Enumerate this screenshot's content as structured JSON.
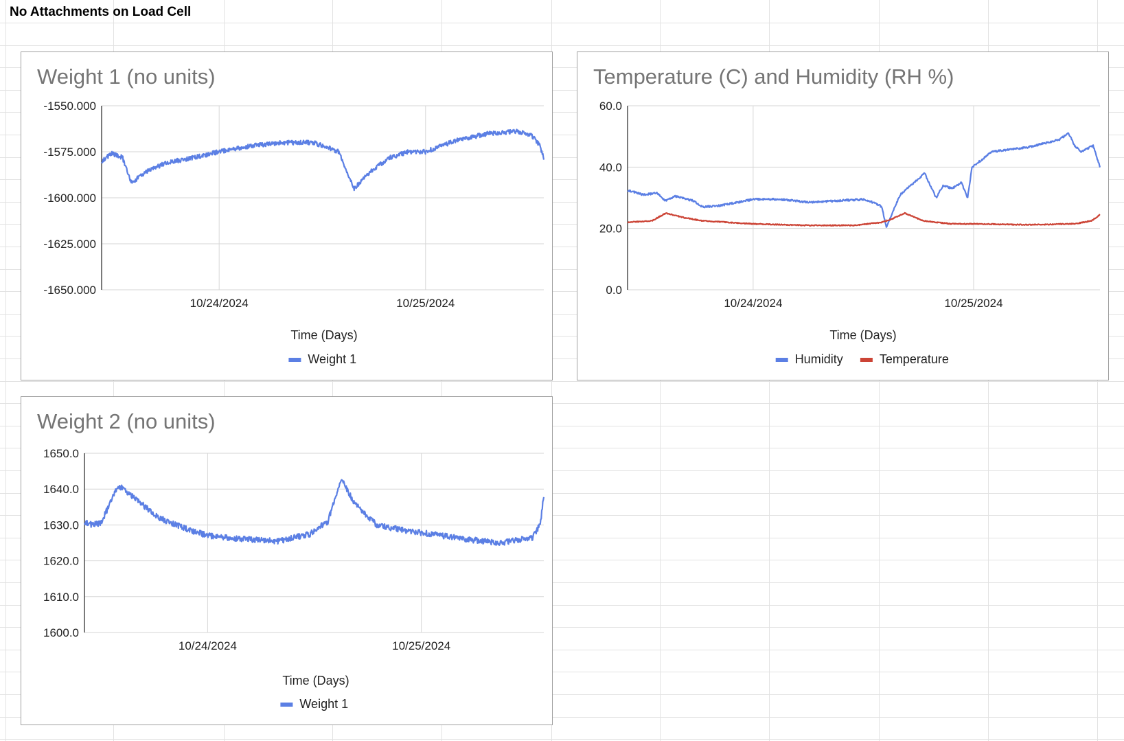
{
  "sheet": {
    "title": "No Attachments on Load Cell"
  },
  "chart_data": [
    {
      "type": "line",
      "title": "Weight 1 (no units)",
      "xlabel": "Time (Days)",
      "ylabel": "",
      "ylim": [
        -1650,
        -1550
      ],
      "yticks": [
        "-1550.000",
        "-1575.000",
        "-1600.000",
        "-1625.000",
        "-1650.000"
      ],
      "yticks_values": [
        -1550,
        -1575,
        -1600,
        -1625,
        -1650
      ],
      "xlim": [
        "10/23/2024 10:20",
        "10/25/2024 13:45"
      ],
      "xticks": [
        "10/24/2024",
        "10/25/2024"
      ],
      "xticks_values": [
        "10/24/2024 00:00",
        "10/25/2024 00:00"
      ],
      "grid": true,
      "legend": "bottom",
      "series": [
        {
          "name": "Weight 1",
          "color": "#5b7fe4",
          "noise": 1.2,
          "x": [
            "10/23/2024 10:20",
            "10/23/2024 11:30",
            "10/23/2024 12:45",
            "10/23/2024 13:45",
            "10/23/2024 15:30",
            "10/23/2024 17:50",
            "10/23/2024 21:15",
            "10/24/2024 00:00",
            "10/24/2024 03:30",
            "10/24/2024 07:30",
            "10/24/2024 11:00",
            "10/24/2024 13:55",
            "10/24/2024 15:40",
            "10/24/2024 17:45",
            "10/24/2024 19:55",
            "10/24/2024 22:05",
            "10/25/2024 00:00",
            "10/25/2024 03:30",
            "10/25/2024 07:20",
            "10/25/2024 10:40",
            "10/25/2024 12:20",
            "10/25/2024 13:20",
            "10/25/2024 13:45"
          ],
          "values": [
            -1580,
            -1576,
            -1578,
            -1592,
            -1586,
            -1581,
            -1578,
            -1575,
            -1572,
            -1570,
            -1570,
            -1575,
            -1595,
            -1585,
            -1578,
            -1575,
            -1575,
            -1569,
            -1565,
            -1564,
            -1566,
            -1572,
            -1579
          ]
        }
      ]
    },
    {
      "type": "line",
      "title": "Temperature (C) and Humidity (RH %)",
      "xlabel": "Time (Days)",
      "ylabel": "",
      "ylim": [
        0,
        60
      ],
      "yticks": [
        "60.0",
        "40.0",
        "20.0",
        "0.0"
      ],
      "yticks_values": [
        60,
        40,
        20,
        0
      ],
      "xlim": [
        "10/23/2024 10:20",
        "10/25/2024 13:45"
      ],
      "xticks": [
        "10/24/2024",
        "10/25/2024"
      ],
      "xticks_values": [
        "10/24/2024 00:00",
        "10/25/2024 00:00"
      ],
      "grid": true,
      "legend": "bottom",
      "series": [
        {
          "name": "Humidity",
          "color": "#5b7fe4",
          "noise": 0.3,
          "x": [
            "10/23/2024 10:20",
            "10/23/2024 12:00",
            "10/23/2024 13:30",
            "10/23/2024 14:30",
            "10/23/2024 15:30",
            "10/23/2024 17:30",
            "10/23/2024 18:30",
            "10/23/2024 20:30",
            "10/24/2024 00:00",
            "10/24/2024 03:00",
            "10/24/2024 06:00",
            "10/24/2024 09:00",
            "10/24/2024 12:00",
            "10/24/2024 13:30",
            "10/24/2024 14:00",
            "10/24/2024 14:30",
            "10/24/2024 16:00",
            "10/24/2024 18:40",
            "10/24/2024 19:55",
            "10/24/2024 20:40",
            "10/24/2024 21:40",
            "10/24/2024 22:40",
            "10/24/2024 23:20",
            "10/24/2024 23:50",
            "10/25/2024 02:00",
            "10/25/2024 06:00",
            "10/25/2024 09:20",
            "10/25/2024 10:20",
            "10/25/2024 11:00",
            "10/25/2024 11:40",
            "10/25/2024 13:00",
            "10/25/2024 13:45"
          ],
          "values": [
            32.5,
            31,
            31.5,
            29,
            30.5,
            29,
            27,
            27.5,
            29.5,
            29.5,
            28.5,
            29,
            29.5,
            28,
            27,
            20.5,
            31,
            38,
            30,
            34,
            33,
            35,
            30,
            40,
            45,
            46.5,
            49,
            51,
            47,
            45,
            47,
            40
          ]
        },
        {
          "name": "Temperature",
          "color": "#cc4436",
          "noise": 0.15,
          "x": [
            "10/23/2024 10:20",
            "10/23/2024 13:00",
            "10/23/2024 14:30",
            "10/23/2024 16:30",
            "10/23/2024 18:30",
            "10/24/2024 00:00",
            "10/24/2024 06:00",
            "10/24/2024 11:00",
            "10/24/2024 14:00",
            "10/24/2024 15:00",
            "10/24/2024 16:30",
            "10/24/2024 18:30",
            "10/24/2024 21:30",
            "10/25/2024 00:00",
            "10/25/2024 06:00",
            "10/25/2024 11:00",
            "10/25/2024 12:50",
            "10/25/2024 13:45"
          ],
          "values": [
            22,
            22.5,
            25,
            23.5,
            22.5,
            21.5,
            21,
            21,
            22,
            23,
            25,
            22.5,
            21.5,
            21.5,
            21.2,
            21.5,
            22.5,
            24.5
          ]
        }
      ]
    },
    {
      "type": "line",
      "title": "Weight 2 (no units)",
      "xlabel": "Time (Days)",
      "ylabel": "",
      "ylim": [
        1600,
        1650
      ],
      "yticks": [
        "1650.0",
        "1640.0",
        "1630.0",
        "1620.0",
        "1610.0",
        "1600.0"
      ],
      "yticks_values": [
        1650,
        1640,
        1630,
        1620,
        1610,
        1600
      ],
      "xlim": [
        "10/23/2024 10:10",
        "10/25/2024 13:45"
      ],
      "xticks": [
        "10/24/2024",
        "10/25/2024"
      ],
      "xticks_values": [
        "10/24/2024 00:00",
        "10/25/2024 00:00"
      ],
      "grid": true,
      "legend": "bottom",
      "series": [
        {
          "name": "Weight 1",
          "color": "#5b7fe4",
          "noise": 0.8,
          "x": [
            "10/23/2024 10:10",
            "10/23/2024 11:00",
            "10/23/2024 12:00",
            "10/23/2024 14:00",
            "10/23/2024 15:30",
            "10/23/2024 18:30",
            "10/23/2024 21:30",
            "10/24/2024 00:00",
            "10/24/2024 04:00",
            "10/24/2024 08:00",
            "10/24/2024 11:30",
            "10/24/2024 13:30",
            "10/24/2024 15:00",
            "10/24/2024 16:30",
            "10/24/2024 19:00",
            "10/24/2024 22:00",
            "10/25/2024 01:00",
            "10/25/2024 05:00",
            "10/25/2024 09:00",
            "10/25/2024 12:30",
            "10/25/2024 13:20",
            "10/25/2024 13:45"
          ],
          "values": [
            1631,
            1630,
            1630.5,
            1641,
            1638,
            1632,
            1629,
            1627,
            1626,
            1625.5,
            1627.5,
            1631,
            1643,
            1636,
            1630,
            1628.5,
            1627.5,
            1626,
            1625,
            1626.5,
            1630,
            1638
          ]
        }
      ]
    }
  ]
}
